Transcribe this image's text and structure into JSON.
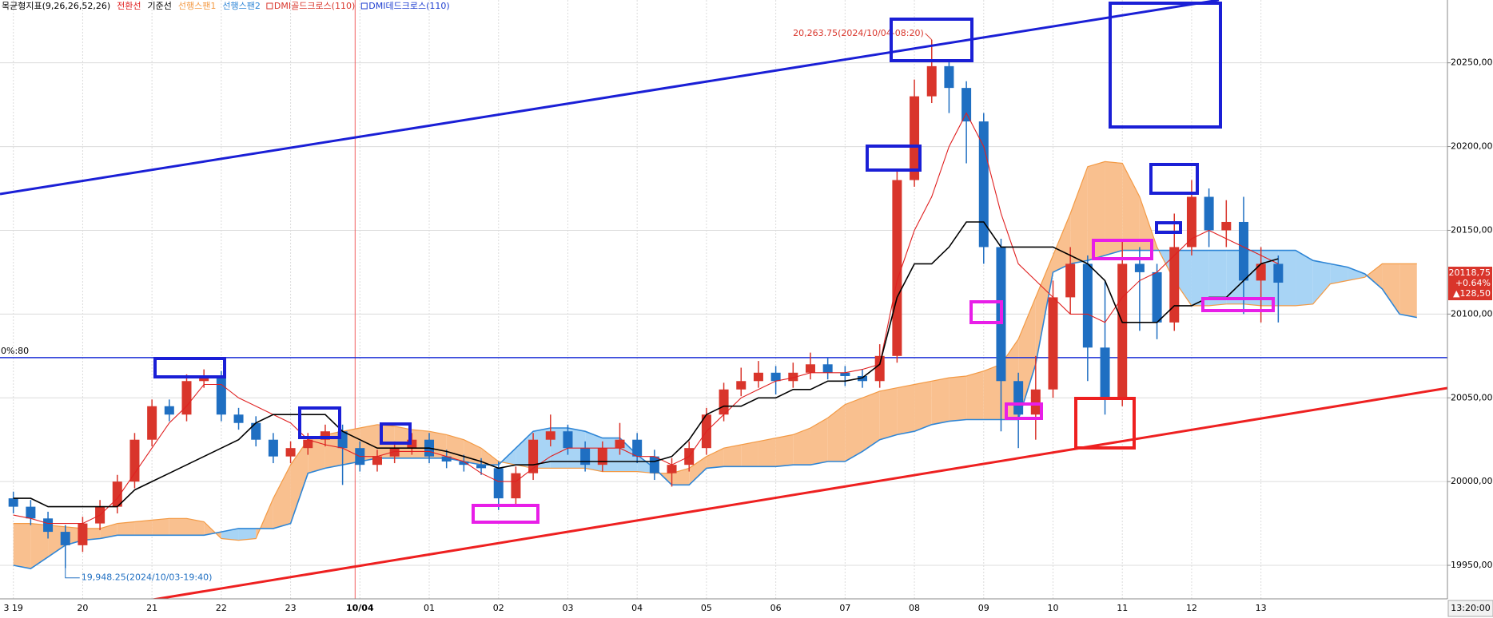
{
  "chart_data": {
    "type": "candlestick",
    "title": "목균형지표(9,26,26,52,26)",
    "categories": [
      "3 19",
      null,
      null,
      null,
      "20",
      null,
      null,
      null,
      "21",
      null,
      null,
      null,
      "22",
      null,
      null,
      null,
      "23",
      null,
      null,
      null,
      "10/04",
      null,
      null,
      null,
      "01",
      null,
      null,
      null,
      "02",
      null,
      null,
      null,
      "03",
      null,
      null,
      null,
      "04",
      null,
      null,
      null,
      "05",
      null,
      null,
      null,
      "06",
      null,
      null,
      null,
      "07",
      null,
      null,
      null,
      "08",
      null,
      null,
      null,
      "09",
      null,
      null,
      null,
      "10",
      null,
      null,
      null,
      "11",
      null,
      null,
      null,
      "12",
      null,
      null,
      null,
      "13",
      null,
      null,
      null,
      null,
      null,
      null,
      null,
      null,
      null
    ],
    "open": [
      19990,
      19985,
      19978,
      19970,
      19962,
      19975,
      19985,
      20000,
      20025,
      20045,
      20040,
      20060,
      20062,
      20040,
      20035,
      20025,
      20015,
      20020,
      20025,
      20030,
      20020,
      20010,
      20015,
      20020,
      20025,
      20015,
      20012,
      20010,
      20008,
      19990,
      20005,
      20025,
      20030,
      20020,
      20010,
      20020,
      20025,
      20015,
      20005,
      20010,
      20020,
      20040,
      20055,
      20060,
      20065,
      20060,
      20065,
      20070,
      20065,
      20063,
      20060,
      20075,
      20180,
      20230,
      20248,
      20235,
      20215,
      20140,
      20060,
      20040,
      20055,
      20110,
      20130,
      20080,
      20050,
      20130,
      20125,
      20095,
      20140,
      20170,
      20150,
      20155,
      20120,
      20130,
      null,
      null,
      null,
      null,
      null,
      null,
      null,
      null
    ],
    "high": [
      19994,
      19989,
      19982,
      19974,
      19979,
      19989,
      20004,
      20029,
      20049,
      20049,
      20064,
      20067,
      20066,
      20044,
      20039,
      20029,
      20024,
      20029,
      20034,
      20034,
      20024,
      20019,
      20024,
      20029,
      20029,
      20019,
      20016,
      20014,
      20012,
      20009,
      20029,
      20040,
      20034,
      20024,
      20024,
      20035,
      20029,
      20019,
      20014,
      20024,
      20044,
      20059,
      20068,
      20072,
      20069,
      20071,
      20077,
      20074,
      20069,
      20067,
      20082,
      20185,
      20240,
      20263.75,
      20252,
      20239,
      20220,
      20145,
      20065,
      20075,
      20120,
      20140,
      20135,
      20120,
      20145,
      20140,
      20130,
      20160,
      20180,
      20175,
      20168,
      20170,
      20140,
      20135,
      null,
      null,
      null,
      null,
      null,
      null,
      null,
      null
    ],
    "low": [
      19981,
      19974,
      19966,
      19948.25,
      19958,
      19971,
      19981,
      19996,
      20021,
      20036,
      20036,
      20056,
      20036,
      20031,
      20021,
      20011,
      20011,
      20016,
      20021,
      19998,
      20006,
      20006,
      20011,
      20016,
      20011,
      20008,
      20006,
      20004,
      19983,
      19986,
      20001,
      20021,
      20016,
      20006,
      20006,
      20016,
      20011,
      20001,
      19997,
      20006,
      20016,
      20036,
      20051,
      20056,
      20052,
      20056,
      20061,
      20061,
      20057,
      20056,
      20056,
      20071,
      20176,
      20226,
      20220,
      20190,
      20130,
      20030,
      20020,
      20025,
      20050,
      20100,
      20060,
      20040,
      20045,
      20090,
      20085,
      20090,
      20135,
      20140,
      20140,
      20100,
      20095,
      20095,
      null,
      null,
      null,
      null,
      null,
      null,
      null,
      null
    ],
    "close": [
      19985,
      19978,
      19970,
      19962,
      19975,
      19985,
      20000,
      20025,
      20045,
      20040,
      20060,
      20062,
      20040,
      20035,
      20025,
      20015,
      20020,
      20025,
      20030,
      20020,
      20010,
      20015,
      20020,
      20025,
      20015,
      20012,
      20010,
      20008,
      19990,
      20005,
      20025,
      20030,
      20020,
      20010,
      20020,
      20025,
      20015,
      20005,
      20010,
      20020,
      20040,
      20055,
      20060,
      20065,
      20060,
      20065,
      20070,
      20065,
      20063,
      20060,
      20075,
      20180,
      20230,
      20248,
      20235,
      20215,
      20140,
      20060,
      20040,
      20055,
      20110,
      20130,
      20080,
      20050,
      20130,
      20125,
      20095,
      20140,
      20170,
      20150,
      20155,
      20120,
      20130,
      20118.75,
      null,
      null,
      null,
      null,
      null,
      null,
      null,
      null
    ],
    "up_color": "#d9352b",
    "down_color": "#1f6fc2",
    "series": [
      {
        "name": "전환선",
        "color": "#e02020",
        "values": [
          19980,
          19978,
          19975,
          19975,
          19975,
          19980,
          19990,
          20005,
          20020,
          20035,
          20045,
          20058,
          20058,
          20050,
          20045,
          20040,
          20035,
          20025,
          20022,
          20020,
          20015,
          20015,
          20018,
          20018,
          20018,
          20015,
          20012,
          20005,
          20000,
          20000,
          20008,
          20015,
          20020,
          20020,
          20020,
          20020,
          20015,
          20015,
          20010,
          20015,
          20030,
          20040,
          20050,
          20055,
          20060,
          20062,
          20065,
          20065,
          20065,
          20067,
          20070,
          20120,
          20150,
          20170,
          20200,
          20220,
          20200,
          20160,
          20130,
          20120,
          20110,
          20100,
          20100,
          20095,
          20110,
          20120,
          20125,
          20135,
          20145,
          20150,
          20145,
          20140,
          20135,
          20130,
          null,
          null,
          null,
          null,
          null,
          null,
          null,
          null
        ]
      },
      {
        "name": "기준선",
        "color": "#000000",
        "values": [
          19990,
          19990,
          19985,
          19985,
          19985,
          19985,
          19985,
          19995,
          20000,
          20005,
          20010,
          20015,
          20020,
          20025,
          20035,
          20040,
          20040,
          20040,
          20040,
          20030,
          20025,
          20020,
          20020,
          20020,
          20020,
          20018,
          20015,
          20012,
          20008,
          20010,
          20010,
          20012,
          20012,
          20012,
          20012,
          20012,
          20012,
          20012,
          20015,
          20025,
          20040,
          20045,
          20045,
          20050,
          20050,
          20055,
          20055,
          20060,
          20060,
          20062,
          20070,
          20110,
          20130,
          20130,
          20140,
          20155,
          20155,
          20140,
          20140,
          20140,
          20140,
          20135,
          20130,
          20120,
          20095,
          20095,
          20095,
          20105,
          20105,
          20110,
          20110,
          20120,
          20130,
          20133,
          null,
          null,
          null,
          null,
          null,
          null,
          null,
          null
        ]
      },
      {
        "name": "선행스팬1",
        "color": "#f39a45",
        "values": [
          19975,
          19975,
          19974,
          19973,
          19972,
          19972,
          19975,
          19976,
          19977,
          19978,
          19978,
          19976,
          19966,
          19965,
          19966,
          19990,
          20010,
          20025,
          20028,
          20030,
          20032,
          20034,
          20033,
          20031,
          20030,
          20028,
          20025,
          20020,
          20012,
          20010,
          20008,
          20008,
          20008,
          20008,
          20006,
          20006,
          20006,
          20005,
          20005,
          20008,
          20015,
          20020,
          20022,
          20024,
          20026,
          20028,
          20032,
          20038,
          20046,
          20050,
          20054,
          20056,
          20058,
          20060,
          20062,
          20063,
          20066,
          20070,
          20085,
          20110,
          20135,
          20160,
          20188,
          20191,
          20190,
          20170,
          20140,
          20120,
          20105,
          20105,
          20106,
          20106,
          20105,
          20105,
          20105,
          20106,
          20118,
          20120,
          20122,
          20130,
          20130,
          20130
        ]
      },
      {
        "name": "선행스팬2",
        "color": "#2f86d6",
        "values": [
          19950,
          19948,
          19955,
          19962,
          19965,
          19966,
          19968,
          19968,
          19968,
          19968,
          19968,
          19968,
          19970,
          19972,
          19972,
          19972,
          19975,
          20005,
          20008,
          20010,
          20012,
          20014,
          20014,
          20014,
          20014,
          20014,
          20012,
          20010,
          20010,
          20020,
          20030,
          20032,
          20032,
          20030,
          20026,
          20026,
          20016,
          20008,
          19998,
          19998,
          20008,
          20009,
          20009,
          20009,
          20009,
          20010,
          20010,
          20012,
          20012,
          20018,
          20025,
          20028,
          20030,
          20034,
          20036,
          20037,
          20037,
          20037,
          20037,
          20070,
          20125,
          20130,
          20132,
          20135,
          20138,
          20138,
          20138,
          20138,
          20138,
          20138,
          20138,
          20138,
          20138,
          20138,
          20138,
          20132,
          20130,
          20128,
          20124,
          20115,
          20100,
          20098
        ]
      }
    ],
    "cloud_up_color": "#f9c08f",
    "cloud_down_color": "#a8d4f5",
    "signals": [
      {
        "name": "DMI골드크로스(110)",
        "color": "#d9352b"
      },
      {
        "name": "DMI데드크로스(110)",
        "color": "#1f3fd0"
      }
    ],
    "ylim": [
      19930,
      20287.5
    ],
    "yticks": [
      {
        "value": 19950,
        "label": "19950,00"
      },
      {
        "value": 20000,
        "label": "20000,00"
      },
      {
        "value": 20050,
        "label": "20050,00"
      },
      {
        "value": 20100,
        "label": "20100,00"
      },
      {
        "value": 20150,
        "label": "20150,00"
      },
      {
        "value": 20200,
        "label": "20200,00"
      },
      {
        "value": 20250,
        "label": "20250,00"
      }
    ],
    "grid": true,
    "hline": {
      "value": 20074,
      "label": "0%:80",
      "color": "#1a2fd6"
    },
    "annotations": [
      "20,263.75(2024/10/04-08:20)",
      "19,948.25(2024/10/03-19:40)"
    ],
    "price_tag": {
      "price": "20118,75",
      "change": "+0.64%",
      "diff": "▲128,50"
    },
    "cursor_label": "13:20:00"
  }
}
